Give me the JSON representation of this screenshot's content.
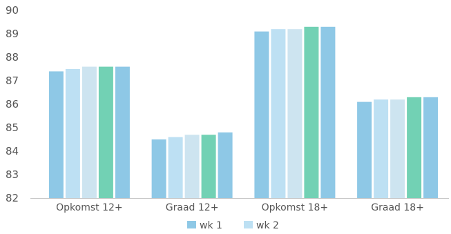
{
  "chart_data": {
    "type": "bar",
    "categories": [
      "Opkomst 12+",
      "Graad 12+",
      "Opkomst 18+",
      "Graad 18+"
    ],
    "ylim": [
      82,
      90
    ],
    "yticks": [
      82,
      83,
      84,
      85,
      86,
      87,
      88,
      89,
      90
    ],
    "grid": false,
    "legend_position": "bottom-center",
    "series": [
      {
        "name": "wk 1",
        "color": "#8ec8e6",
        "values": [
          87.4,
          84.5,
          89.1,
          86.1
        ]
      },
      {
        "name": "wk 2",
        "color": "#bde0f3",
        "values": [
          87.5,
          84.6,
          89.2,
          86.2
        ]
      },
      {
        "color": "#cde4f0",
        "values": [
          87.6,
          84.7,
          89.2,
          86.2
        ]
      },
      {
        "color": "#72d1b4",
        "values": [
          87.6,
          84.7,
          89.3,
          86.3
        ]
      },
      {
        "color": "#8ec8e6",
        "values": [
          87.6,
          84.8,
          89.3,
          86.3
        ]
      }
    ]
  }
}
